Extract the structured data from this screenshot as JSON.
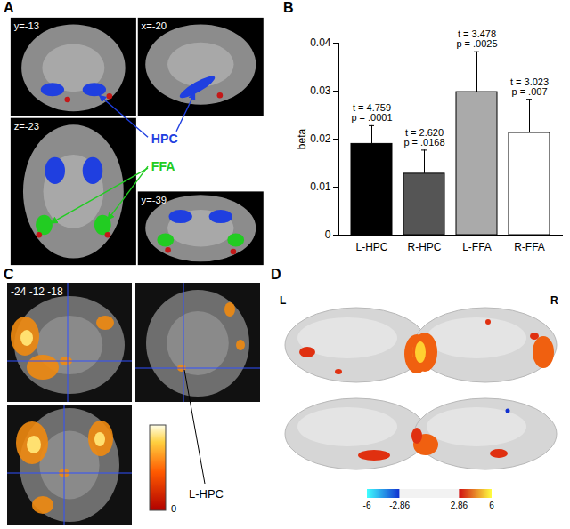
{
  "chart_data": {
    "panel": "B",
    "type": "bar",
    "categories": [
      "L-HPC",
      "R-HPC",
      "L-FFA",
      "R-FFA"
    ],
    "values": [
      0.019,
      0.0128,
      0.0298,
      0.0213
    ],
    "errors": [
      0.0038,
      0.0049,
      0.0084,
      0.007
    ],
    "colors": [
      "#000000",
      "#555555",
      "#aaaaaa",
      "#ffffff"
    ],
    "y_label": "beta",
    "ylim": [
      0,
      0.04
    ],
    "yticks": [
      0,
      0.01,
      0.02,
      0.03,
      0.04
    ],
    "annotations": [
      {
        "category": "L-HPC",
        "text": [
          "t = 4.759",
          "p = .0001"
        ]
      },
      {
        "category": "R-HPC",
        "text": [
          "t = 2.620",
          "p = .0168"
        ]
      },
      {
        "category": "L-FFA",
        "text": [
          "t = 3.478",
          "p = .0025"
        ]
      },
      {
        "category": "R-FFA",
        "text": [
          "t = 3.023",
          "p = .007"
        ]
      }
    ]
  },
  "panel_A": {
    "label": "A",
    "slices": [
      "y=-13",
      "x=-20",
      "z=-23",
      "y=-39"
    ],
    "regions": [
      {
        "name": "HPC",
        "color": "#1f3fe0"
      },
      {
        "name": "FFA",
        "color": "#22cc22"
      }
    ]
  },
  "panel_C": {
    "label": "C",
    "coordinates": "-24 -12 -18",
    "region_label": "L-HPC",
    "colorbar": {
      "ticks": [
        0
      ]
    }
  },
  "panel_D": {
    "label": "D",
    "hemispheres": [
      "L",
      "R"
    ],
    "colorbar": {
      "range": [
        -6,
        6
      ],
      "ticks": [
        -6,
        -2.86,
        2.86,
        6
      ],
      "threshold": 2.86
    }
  }
}
